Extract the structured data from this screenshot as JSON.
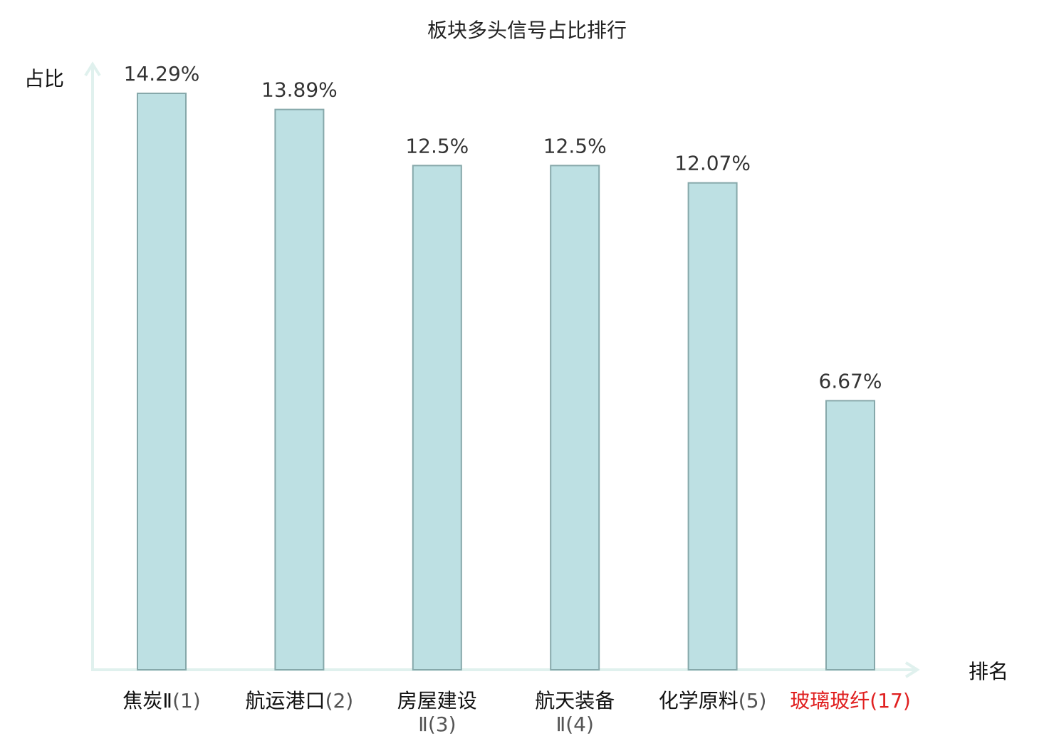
{
  "chart_data": {
    "type": "bar",
    "title": "板块多头信号占比排行",
    "ylabel": "占比",
    "xlabel": "排名",
    "ylim": [
      0,
      14.29
    ],
    "grid": false,
    "categories": [
      {
        "name": "焦炭Ⅱ",
        "rank": "(1)",
        "highlight": false
      },
      {
        "name": "航运港口",
        "rank": "(2)",
        "highlight": false
      },
      {
        "name": "房屋建设",
        "rank": "Ⅱ(3)",
        "highlight": false
      },
      {
        "name": "航天装备",
        "rank": "Ⅱ(4)",
        "highlight": false
      },
      {
        "name": "化学原料",
        "rank": "(5)",
        "highlight": false
      },
      {
        "name": "玻璃玻纤",
        "rank": "(17)",
        "highlight": true
      }
    ],
    "values": [
      14.29,
      13.89,
      12.5,
      12.5,
      12.07,
      6.67
    ],
    "value_labels": [
      "14.29%",
      "13.89%",
      "12.5%",
      "12.5%",
      "12.07%",
      "6.67%"
    ],
    "colors": {
      "bar_fill": "#bde0e3",
      "bar_stroke": "#86a8aa",
      "axis": "#e0f1ee",
      "highlight_text": "#e02020",
      "normal_text": "#111111",
      "rank_text": "#555555"
    }
  }
}
